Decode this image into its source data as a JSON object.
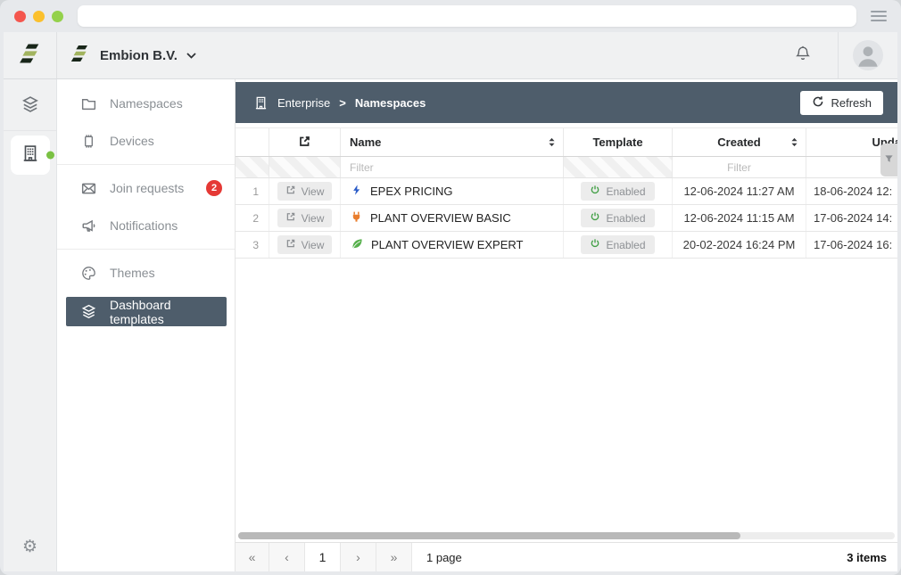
{
  "chrome": {
    "window_buttons": [
      "close",
      "minimize",
      "zoom"
    ],
    "colors": {
      "close": "#f4564e",
      "minimize": "#fbc02d",
      "zoom": "#94d14b"
    }
  },
  "app_header": {
    "org_name": "Embion B.V."
  },
  "rail": {
    "items": [
      {
        "icon": "layers"
      },
      {
        "icon": "building",
        "active": true,
        "status_dot": true
      }
    ],
    "bottom_icon": "gear"
  },
  "sidebar": {
    "items": [
      {
        "label": "Namespaces",
        "icon": "folder"
      },
      {
        "label": "Devices",
        "icon": "chip",
        "group_end": true
      },
      {
        "label": "Join requests",
        "icon": "envelope",
        "badge": "2"
      },
      {
        "label": "Notifications",
        "icon": "megaphone",
        "group_end": true
      },
      {
        "label": "Themes",
        "icon": "palette"
      },
      {
        "label": "Dashboard templates",
        "icon": "layers",
        "selected": true
      }
    ]
  },
  "breadcrumb": {
    "root": "Enterprise",
    "sep": ">",
    "current": "Namespaces"
  },
  "toolbar": {
    "refresh_label": "Refresh"
  },
  "table": {
    "headers": {
      "name": "Name",
      "template": "Template",
      "created": "Created",
      "updated": "Updated"
    },
    "filter_placeholder": "Filter",
    "rows": [
      {
        "num": "1",
        "view_label": "View",
        "name_icon": "bolt",
        "name": "EPEX PRICING",
        "template_status": "Enabled",
        "created": "12-06-2024 11:27 AM",
        "updated": "18-06-2024 12:"
      },
      {
        "num": "2",
        "view_label": "View",
        "name_icon": "plug",
        "name": "PLANT OVERVIEW BASIC",
        "template_status": "Enabled",
        "created": "12-06-2024 11:15 AM",
        "updated": "17-06-2024 14:"
      },
      {
        "num": "3",
        "view_label": "View",
        "name_icon": "leaf",
        "name": "PLANT OVERVIEW EXPERT",
        "template_status": "Enabled",
        "created": "20-02-2024 16:24 PM",
        "updated": "17-06-2024 16:"
      }
    ]
  },
  "pagination": {
    "first": "«",
    "prev": "‹",
    "current_page": "1",
    "next": "›",
    "last": "»",
    "page_count_label": "1 page",
    "items_count_label": "3 items"
  },
  "colors": {
    "accent_slate": "#4e5d6b",
    "badge_red": "#e53935",
    "enabled_green": "#43a047",
    "bolt_blue": "#2b5cc8",
    "plug_orange": "#e97e2e",
    "leaf_green": "#56b04c",
    "logo_dark": "#182619",
    "logo_olive": "#a2b45f"
  }
}
